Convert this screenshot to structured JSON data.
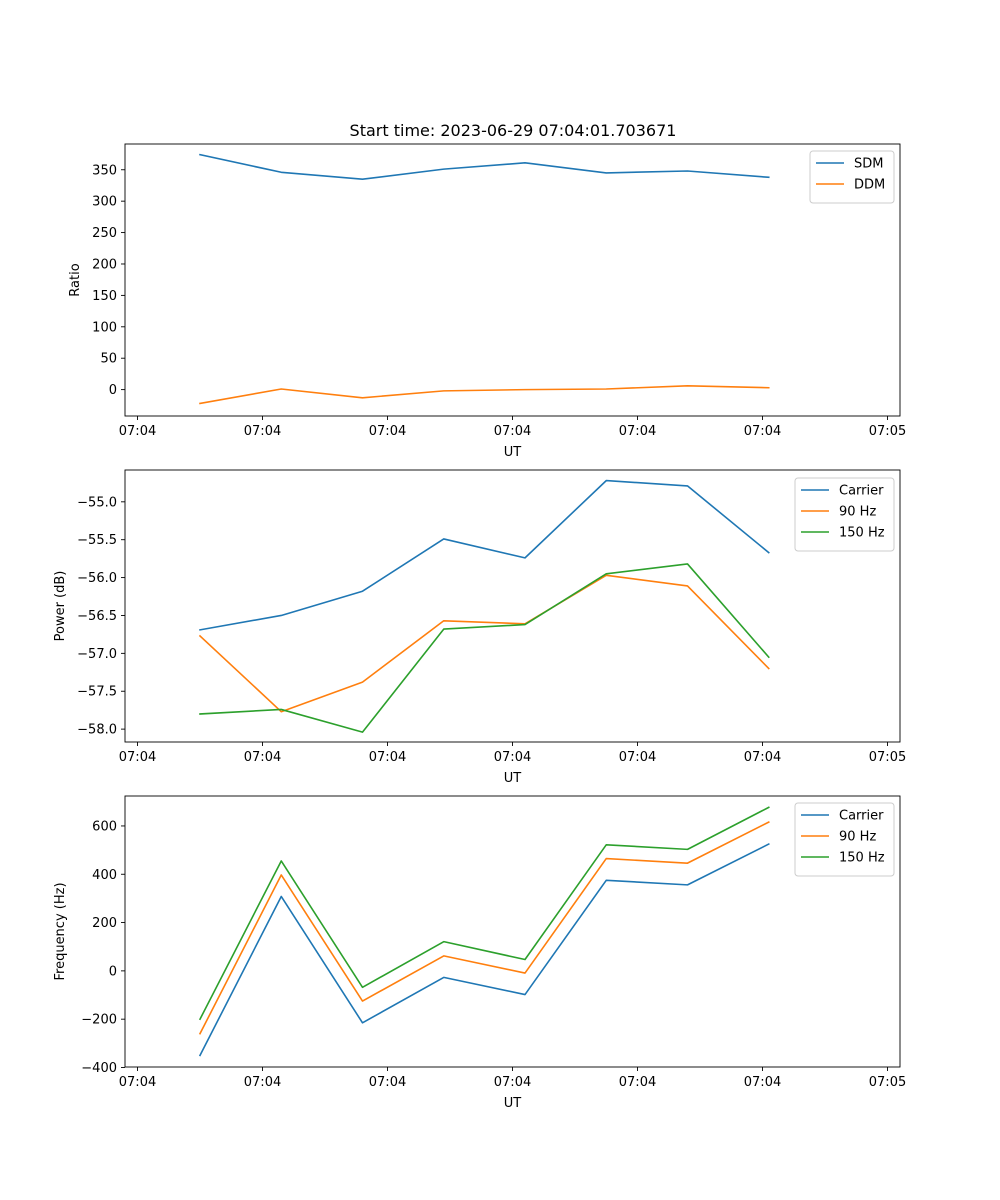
{
  "figure_title": "Start time: 2023-06-29 07:04:01.703671",
  "chart_data": [
    {
      "type": "line",
      "title": "Start time: 2023-06-29 07:04:01.703671",
      "xlabel": "UT",
      "ylabel": "Ratio",
      "x_tick_labels": [
        "07:04",
        "07:04",
        "07:04",
        "07:04",
        "07:04",
        "07:04",
        "07:05"
      ],
      "y_ticks": [
        0,
        50,
        100,
        150,
        200,
        250,
        300,
        350
      ],
      "ylim": [
        -42,
        391
      ],
      "grid": false,
      "legend_position": "top-right",
      "x_points": [
        0.5,
        1.15,
        1.8,
        2.45,
        3.1,
        3.75,
        4.4,
        5.05
      ],
      "series": [
        {
          "name": "SDM",
          "color": "#1f77b4",
          "values": [
            374,
            346,
            335,
            351,
            361,
            345,
            348,
            338
          ]
        },
        {
          "name": "DDM",
          "color": "#ff7f0e",
          "values": [
            -22,
            1,
            -13,
            -2,
            0,
            1,
            6,
            3
          ]
        }
      ]
    },
    {
      "type": "line",
      "title": "",
      "xlabel": "UT",
      "ylabel": "Power (dB)",
      "x_tick_labels": [
        "07:04",
        "07:04",
        "07:04",
        "07:04",
        "07:04",
        "07:04",
        "07:05"
      ],
      "y_ticks": [
        -58.0,
        -57.5,
        -57.0,
        -56.5,
        -56.0,
        -55.5,
        -55.0
      ],
      "ylim": [
        -58.17,
        -54.58
      ],
      "grid": false,
      "legend_position": "top-right",
      "x_points": [
        0.5,
        1.15,
        1.8,
        2.45,
        3.1,
        3.75,
        4.4,
        5.05
      ],
      "series": [
        {
          "name": "Carrier",
          "color": "#1f77b4",
          "values": [
            -56.69,
            -56.5,
            -56.18,
            -55.49,
            -55.74,
            -54.72,
            -54.79,
            -55.67
          ]
        },
        {
          "name": "90 Hz",
          "color": "#ff7f0e",
          "values": [
            -56.77,
            -57.77,
            -57.38,
            -56.57,
            -56.61,
            -55.97,
            -56.11,
            -57.2
          ]
        },
        {
          "name": "150 Hz",
          "color": "#2ca02c",
          "values": [
            -57.8,
            -57.74,
            -58.04,
            -56.68,
            -56.62,
            -55.95,
            -55.82,
            -57.05
          ]
        }
      ]
    },
    {
      "type": "line",
      "title": "",
      "xlabel": "UT",
      "ylabel": "Frequency (Hz)",
      "x_tick_labels": [
        "07:04",
        "07:04",
        "07:04",
        "07:04",
        "07:04",
        "07:04",
        "07:05"
      ],
      "y_ticks": [
        -400,
        -200,
        0,
        200,
        400,
        600
      ],
      "ylim": [
        -398,
        724
      ],
      "grid": false,
      "legend_position": "top-right",
      "x_points": [
        0.5,
        1.15,
        1.8,
        2.45,
        3.1,
        3.75,
        4.4,
        5.05
      ],
      "series": [
        {
          "name": "Carrier",
          "color": "#1f77b4",
          "values": [
            -350,
            308,
            -215,
            -27,
            -98,
            375,
            356,
            525
          ]
        },
        {
          "name": "90 Hz",
          "color": "#ff7f0e",
          "values": [
            -260,
            397,
            -125,
            62,
            -9,
            465,
            446,
            616
          ]
        },
        {
          "name": "150 Hz",
          "color": "#2ca02c",
          "values": [
            -200,
            455,
            -68,
            121,
            47,
            522,
            503,
            677
          ]
        }
      ]
    }
  ]
}
